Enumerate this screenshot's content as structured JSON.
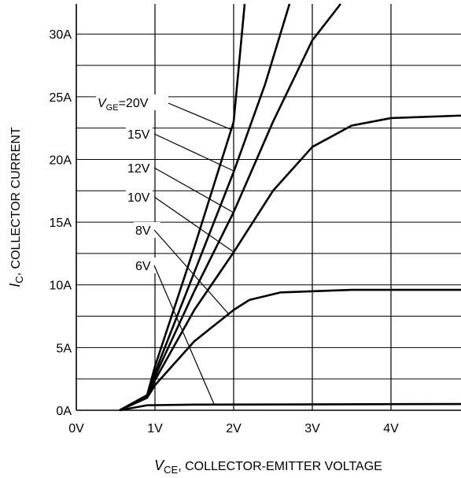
{
  "chart_data": {
    "type": "line",
    "xlabel": {
      "symbol": "V",
      "subscript": "CE",
      "text": ", COLLECTOR-EMITTER VOLTAGE"
    },
    "ylabel": {
      "symbol": "I",
      "subscript": "C",
      "text": ", COLLECTOR CURRENT"
    },
    "label_prefix": {
      "symbol": "V",
      "subscript": "GE"
    },
    "xlim": [
      0,
      4.89
    ],
    "ylim": [
      0,
      32.4
    ],
    "xticks": [
      {
        "value": 0,
        "label": "0V"
      },
      {
        "value": 1,
        "label": "1V"
      },
      {
        "value": 2,
        "label": "2V"
      },
      {
        "value": 3,
        "label": "3V"
      },
      {
        "value": 4,
        "label": "4V"
      }
    ],
    "yticks": [
      {
        "value": 0,
        "label": "0A"
      },
      {
        "value": 5,
        "label": "5A"
      },
      {
        "value": 10,
        "label": "10A"
      },
      {
        "value": 15,
        "label": "15A"
      },
      {
        "value": 20,
        "label": "20A"
      },
      {
        "value": 25,
        "label": "25A"
      },
      {
        "value": 30,
        "label": "30A"
      }
    ],
    "yminor": [
      2.5,
      7.5,
      12.5,
      17.5,
      22.5,
      27.5
    ],
    "grid": true,
    "series": [
      {
        "name": "=20V",
        "color": "#000000",
        "x": [
          0.55,
          0.9,
          1.0,
          1.5,
          2.0,
          2.14
        ],
        "values": [
          0,
          1.2,
          3.5,
          13,
          23,
          32.4
        ]
      },
      {
        "name": "15V",
        "color": "#000000",
        "x": [
          0.55,
          0.9,
          1.0,
          1.5,
          2.0,
          2.4,
          2.71
        ],
        "values": [
          0,
          1.2,
          3,
          11,
          19,
          26,
          32.4
        ]
      },
      {
        "name": "12V",
        "color": "#000000",
        "x": [
          0.55,
          0.9,
          1.0,
          1.5,
          2.0,
          2.5,
          3.0,
          3.36
        ],
        "values": [
          0,
          1.1,
          2.7,
          9.5,
          15.8,
          23,
          29.5,
          32.4
        ]
      },
      {
        "name": "10V",
        "color": "#000000",
        "x": [
          0.55,
          0.9,
          1.0,
          1.5,
          2.0,
          2.5,
          3.0,
          3.5,
          4.0,
          4.89
        ],
        "values": [
          0,
          1.0,
          2.4,
          8,
          12.6,
          17.5,
          21,
          22.7,
          23.3,
          23.5
        ]
      },
      {
        "name": "8V",
        "color": "#000000",
        "x": [
          0.55,
          0.9,
          1.0,
          1.5,
          2.0,
          2.2,
          2.6,
          3.5,
          4.89
        ],
        "values": [
          0,
          1.0,
          2.0,
          5.5,
          8,
          8.8,
          9.4,
          9.6,
          9.6
        ]
      },
      {
        "name": "6V",
        "color": "#000000",
        "x": [
          0.55,
          0.9,
          1.5,
          4.89
        ],
        "values": [
          0,
          0.4,
          0.45,
          0.5
        ]
      }
    ]
  }
}
